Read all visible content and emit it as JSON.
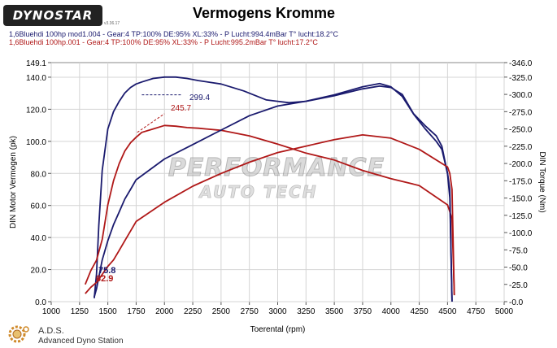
{
  "header": {
    "logo_text": "DYNOSTAR",
    "logo_sub": "v3.36.17",
    "title": "Vermogens Kromme"
  },
  "runs": [
    {
      "label": "1,6Bluehdi 100hp mod1.004 - Gear:4 TP:100% DE:95% XL:33%   - P Lucht:994.4mBar T° lucht:18.2°C",
      "color": "#1a1a6e"
    },
    {
      "label": "1,6Bluehdi 100hp.001 - Gear:4 TP:100% DE:95% XL:33%   - P Lucht:995.2mBar T° lucht:17.2°C",
      "color": "#b01818"
    }
  ],
  "footer": {
    "ads_title": "A.D.S.",
    "ads_sub": "Advanced Dyno Station"
  },
  "watermark": {
    "line1": "PERFORMANCE",
    "line2": "AUTO TECH",
    "note": "logo watermark reproduced as picture"
  },
  "chart_data": {
    "type": "line",
    "xlabel": "Toerental (rpm)",
    "ylabel": "DIN Motor Vermogen (pk)",
    "y2label": "DIN Torque (Nm)",
    "xlim": [
      1000,
      5000
    ],
    "ylim": [
      0,
      149.1
    ],
    "y2lim": [
      0,
      346.0
    ],
    "x_ticks": [
      "1000",
      "1250",
      "1500",
      "1750",
      "2000",
      "2250",
      "2500",
      "2750",
      "3000",
      "3250",
      "3500",
      "3750",
      "4000",
      "4250",
      "4500",
      "4750",
      "5000"
    ],
    "y_ticks": [
      "0.0",
      "20.0",
      "40.0",
      "60.0",
      "80.0",
      "100.0",
      "120.0",
      "140.0",
      "149.1"
    ],
    "y2_ticks": [
      "-0.0",
      "-25.0",
      "-50.0",
      "-75.0",
      "-100.0",
      "-125.0",
      "-150.0",
      "-175.0",
      "-200.0",
      "-225.0",
      "-250.0",
      "-275.0",
      "-300.0",
      "-325.0",
      "-346.0"
    ],
    "grid": true,
    "series": [
      {
        "name": "1,6Bluehdi 100hp mod1.004",
        "kind": "torque",
        "axis": "right",
        "color": "#1a1a6e",
        "x": [
          1380,
          1400,
          1420,
          1450,
          1500,
          1550,
          1600,
          1650,
          1700,
          1750,
          1800,
          1900,
          2000,
          2100,
          2200,
          2300,
          2500,
          2700,
          2900,
          3000,
          3100,
          3250,
          3500,
          3750,
          3900,
          4000,
          4100,
          4200,
          4300,
          4400,
          4450,
          4500,
          4520,
          4540
        ],
        "values": [
          5,
          40,
          110,
          190,
          250,
          275,
          290,
          302,
          310,
          315,
          318,
          323,
          325,
          325,
          323,
          320,
          315,
          305,
          292,
          290,
          288,
          290,
          298,
          308,
          312,
          310,
          300,
          272,
          255,
          240,
          225,
          185,
          150,
          0
        ]
      },
      {
        "name": "1,6Bluehdi 100hp.001",
        "kind": "torque",
        "axis": "right",
        "color": "#b01818",
        "x": [
          1300,
          1350,
          1400,
          1450,
          1500,
          1550,
          1600,
          1650,
          1700,
          1750,
          1800,
          1900,
          2000,
          2100,
          2200,
          2300,
          2500,
          2750,
          3000,
          3250,
          3500,
          3750,
          4000,
          4250,
          4500,
          4520,
          4540,
          4560
        ],
        "values": [
          25,
          45,
          60,
          90,
          140,
          175,
          200,
          218,
          230,
          238,
          245,
          250,
          255,
          254,
          252,
          251,
          248,
          240,
          228,
          215,
          205,
          190,
          178,
          168,
          140,
          130,
          120,
          10
        ]
      },
      {
        "name": "1,6Bluehdi 100hp mod1.004",
        "kind": "power",
        "axis": "left",
        "color": "#1a1a6e",
        "x": [
          1380,
          1400,
          1450,
          1500,
          1550,
          1600,
          1650,
          1700,
          1750,
          2000,
          2250,
          2500,
          2750,
          3000,
          3250,
          3500,
          3750,
          3900,
          4000,
          4100,
          4200,
          4300,
          4400,
          4450,
          4500,
          4520,
          4540
        ],
        "values": [
          3,
          8,
          26,
          38,
          48,
          56,
          64,
          70,
          76,
          89,
          98,
          107,
          116,
          122,
          125,
          129,
          134,
          136,
          134,
          128,
          117,
          108,
          100,
          95,
          80,
          70,
          0
        ]
      },
      {
        "name": "1,6Bluehdi 100hp.001",
        "kind": "power",
        "axis": "left",
        "color": "#b01818",
        "x": [
          1300,
          1350,
          1400,
          1450,
          1500,
          1550,
          1600,
          1650,
          1700,
          1750,
          2000,
          2250,
          2500,
          2750,
          3000,
          3250,
          3500,
          3750,
          4000,
          4250,
          4500,
          4520,
          4540,
          4560
        ],
        "values": [
          5,
          9,
          12,
          17,
          22,
          26,
          32,
          38,
          44,
          50,
          62,
          72,
          80,
          87,
          93,
          97,
          101,
          104,
          102,
          95,
          84,
          80,
          70,
          4
        ]
      }
    ],
    "annotations": [
      {
        "text": "299.4",
        "color": "#1a1a6e",
        "x": 2000,
        "y": 299.4,
        "axis": "right"
      },
      {
        "text": "245.7",
        "color": "#b01818",
        "x": 1850,
        "y": 245.7,
        "axis": "right"
      },
      {
        "text": "75.8",
        "color": "#1a1a6e",
        "x": 1440,
        "y": 20,
        "axis": "left"
      },
      {
        "text": "62.9",
        "color": "#b01818",
        "x": 1400,
        "y": 14,
        "axis": "left"
      }
    ]
  }
}
